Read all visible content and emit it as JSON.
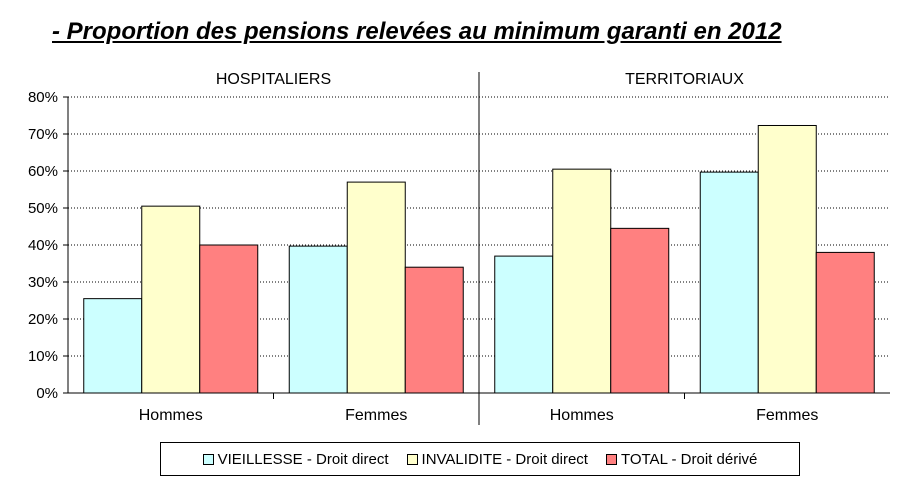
{
  "title": "- Proportion des pensions relevées au minimum garanti en 2012",
  "chart_data": {
    "type": "bar",
    "groups": [
      "HOSPITALIERS",
      "TERRITORIAUX"
    ],
    "categories": [
      "Hommes",
      "Femmes",
      "Hommes",
      "Femmes"
    ],
    "series": [
      {
        "name": "VIEILLESSE - Droit direct",
        "color": "#ccffff",
        "values": [
          25.5,
          39.7,
          37,
          59.7
        ]
      },
      {
        "name": "INVALIDITE - Droit direct",
        "color": "#ffffcc",
        "values": [
          50.5,
          57,
          60.5,
          72.3
        ]
      },
      {
        "name": "TOTAL - Droit dérivé",
        "color": "#ff8080",
        "values": [
          40,
          34,
          44.5,
          38
        ]
      }
    ],
    "yticks": [
      "0%",
      "10%",
      "20%",
      "30%",
      "40%",
      "50%",
      "60%",
      "70%",
      "80%"
    ],
    "ylim": [
      0,
      80
    ],
    "grid": true,
    "legend_position": "bottom"
  }
}
